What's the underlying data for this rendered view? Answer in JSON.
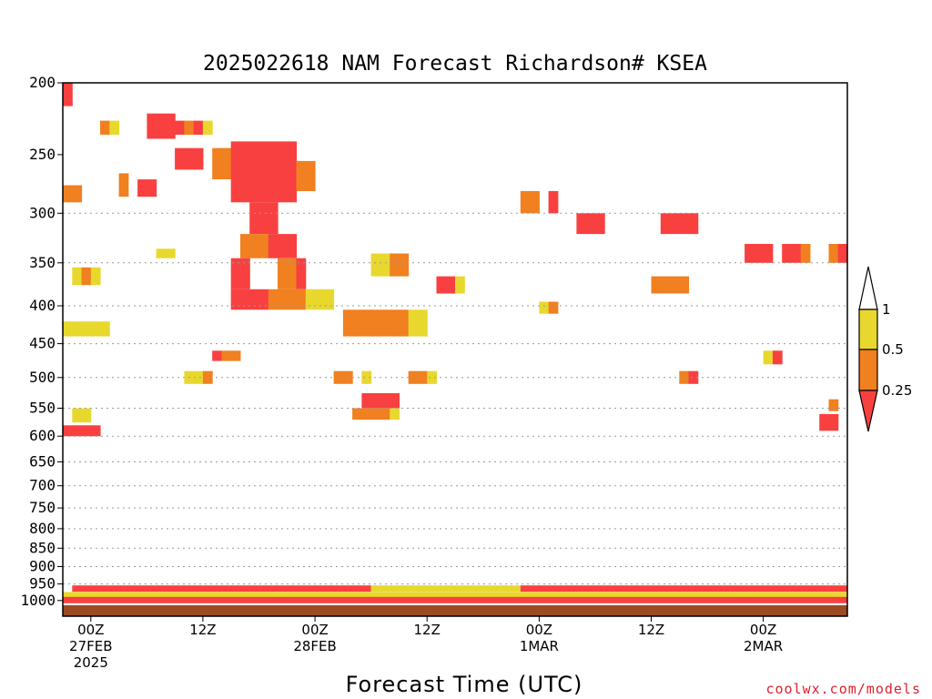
{
  "chart_data": {
    "type": "heatmap",
    "title": "2025022618 NAM Forecast Richardson# KSEA",
    "xlabel": "Forecast Time (UTC)",
    "ylabel": "",
    "y_axis": {
      "scale": "log",
      "reversed": true,
      "range": [
        200,
        1050
      ],
      "ticks": [
        "200",
        "250",
        "300",
        "350",
        "400",
        "450",
        "500",
        "550",
        "600",
        "650",
        "700",
        "750",
        "800",
        "850",
        "900",
        "950",
        "1000"
      ]
    },
    "x_axis": {
      "range_hours": [
        -3,
        81
      ],
      "ticks": [
        {
          "hour": 0,
          "lines": [
            "00Z",
            "27FEB",
            "2025"
          ]
        },
        {
          "hour": 12,
          "lines": [
            "12Z"
          ]
        },
        {
          "hour": 24,
          "lines": [
            "00Z",
            "28FEB"
          ]
        },
        {
          "hour": 36,
          "lines": [
            "12Z"
          ]
        },
        {
          "hour": 48,
          "lines": [
            "00Z",
            "1MAR"
          ]
        },
        {
          "hour": 60,
          "lines": [
            "12Z"
          ]
        },
        {
          "hour": 72,
          "lines": [
            "00Z",
            "2MAR"
          ]
        }
      ]
    },
    "grid": {
      "horizontal_dotted": [
        "300",
        "350",
        "400",
        "450",
        "500",
        "550",
        "600",
        "650",
        "700",
        "750",
        "800",
        "850",
        "900",
        "950"
      ]
    },
    "legend": {
      "placement": "right",
      "entries": [
        {
          "label": "1",
          "color": "#e8d82e",
          "range": "0.5 – 1"
        },
        {
          "label": "0.5",
          "color": "#f08020",
          "range": "0.25 – 0.5"
        },
        {
          "label": "0.25",
          "color": "#f84040",
          "range": "< 0.25"
        }
      ]
    },
    "colors": {
      "ri_lt_025": "#f84040",
      "ri_025_05": "#f08020",
      "ri_05_1": "#e8d82e",
      "ground": "#9c4a22"
    },
    "cells": [
      {
        "h": -3,
        "p": [
          200,
          215
        ],
        "c": 0
      },
      {
        "h": 1,
        "p": [
          225,
          235
        ],
        "c": 1
      },
      {
        "h": 2,
        "p": [
          225,
          235
        ],
        "c": 2
      },
      {
        "h": 6,
        "p": [
          220,
          238
        ],
        "c": 0
      },
      {
        "h": 7,
        "p": [
          220,
          238
        ],
        "c": 0
      },
      {
        "h": 8,
        "p": [
          220,
          238
        ],
        "c": 0
      },
      {
        "h": 9,
        "p": [
          225,
          235
        ],
        "c": 0
      },
      {
        "h": 10,
        "p": [
          225,
          235
        ],
        "c": 1
      },
      {
        "h": 11,
        "p": [
          225,
          235
        ],
        "c": 0
      },
      {
        "h": 12,
        "p": [
          225,
          235
        ],
        "c": 2
      },
      {
        "h": 9,
        "p": [
          245,
          262
        ],
        "c": 0
      },
      {
        "h": 10,
        "p": [
          245,
          262
        ],
        "c": 0
      },
      {
        "h": 11,
        "p": [
          245,
          262
        ],
        "c": 0
      },
      {
        "h": 13,
        "p": [
          245,
          270
        ],
        "c": 1
      },
      {
        "h": 14,
        "p": [
          245,
          270
        ],
        "c": 1
      },
      {
        "h": 15,
        "p": [
          240,
          290
        ],
        "c": 0
      },
      {
        "h": 16,
        "p": [
          240,
          290
        ],
        "c": 0
      },
      {
        "h": 17,
        "p": [
          240,
          290
        ],
        "c": 0
      },
      {
        "h": 18,
        "p": [
          240,
          290
        ],
        "c": 0
      },
      {
        "h": 19,
        "p": [
          240,
          290
        ],
        "c": 0
      },
      {
        "h": 20,
        "p": [
          240,
          290
        ],
        "c": 0
      },
      {
        "h": 21,
        "p": [
          240,
          290
        ],
        "c": 0
      },
      {
        "h": 17,
        "p": [
          290,
          320
        ],
        "c": 0
      },
      {
        "h": 18,
        "p": [
          290,
          320
        ],
        "c": 0
      },
      {
        "h": 19,
        "p": [
          290,
          320
        ],
        "c": 0
      },
      {
        "h": 22,
        "p": [
          255,
          280
        ],
        "c": 1
      },
      {
        "h": 23,
        "p": [
          255,
          280
        ],
        "c": 1
      },
      {
        "h": 3,
        "p": [
          265,
          285
        ],
        "c": 1
      },
      {
        "h": 5,
        "p": [
          270,
          285
        ],
        "c": 0
      },
      {
        "h": 6,
        "p": [
          270,
          285
        ],
        "c": 0
      },
      {
        "h": -2,
        "p": [
          275,
          290
        ],
        "c": 1
      },
      {
        "h": -3,
        "p": [
          275,
          290
        ],
        "c": 1
      },
      {
        "h": 16,
        "p": [
          320,
          345
        ],
        "c": 1
      },
      {
        "h": 17,
        "p": [
          320,
          345
        ],
        "c": 1
      },
      {
        "h": 18,
        "p": [
          320,
          345
        ],
        "c": 1
      },
      {
        "h": 19,
        "p": [
          320,
          345
        ],
        "c": 0
      },
      {
        "h": 20,
        "p": [
          320,
          345
        ],
        "c": 0
      },
      {
        "h": 21,
        "p": [
          320,
          345
        ],
        "c": 0
      },
      {
        "h": 15,
        "p": [
          345,
          380
        ],
        "c": 0
      },
      {
        "h": 16,
        "p": [
          345,
          380
        ],
        "c": 0
      },
      {
        "h": 20,
        "p": [
          345,
          380
        ],
        "c": 1
      },
      {
        "h": 21,
        "p": [
          345,
          380
        ],
        "c": 1
      },
      {
        "h": 22,
        "p": [
          345,
          380
        ],
        "c": 0
      },
      {
        "h": 15,
        "p": [
          380,
          405
        ],
        "c": 0
      },
      {
        "h": 16,
        "p": [
          380,
          405
        ],
        "c": 0
      },
      {
        "h": 17,
        "p": [
          380,
          405
        ],
        "c": 0
      },
      {
        "h": 18,
        "p": [
          380,
          405
        ],
        "c": 0
      },
      {
        "h": 19,
        "p": [
          380,
          405
        ],
        "c": 1
      },
      {
        "h": 20,
        "p": [
          380,
          405
        ],
        "c": 1
      },
      {
        "h": 21,
        "p": [
          380,
          405
        ],
        "c": 1
      },
      {
        "h": 22,
        "p": [
          380,
          405
        ],
        "c": 1
      },
      {
        "h": 23,
        "p": [
          380,
          405
        ],
        "c": 2
      },
      {
        "h": 24,
        "p": [
          380,
          405
        ],
        "c": 2
      },
      {
        "h": 25,
        "p": [
          380,
          405
        ],
        "c": 2
      },
      {
        "h": 27,
        "p": [
          405,
          440
        ],
        "c": 1
      },
      {
        "h": 28,
        "p": [
          405,
          440
        ],
        "c": 1
      },
      {
        "h": 29,
        "p": [
          405,
          440
        ],
        "c": 1
      },
      {
        "h": 30,
        "p": [
          405,
          440
        ],
        "c": 1
      },
      {
        "h": 31,
        "p": [
          405,
          440
        ],
        "c": 1
      },
      {
        "h": 32,
        "p": [
          405,
          440
        ],
        "c": 1
      },
      {
        "h": 33,
        "p": [
          405,
          440
        ],
        "c": 1
      },
      {
        "h": 34,
        "p": [
          405,
          440
        ],
        "c": 2
      },
      {
        "h": 35,
        "p": [
          405,
          440
        ],
        "c": 2
      },
      {
        "h": 30,
        "p": [
          340,
          365
        ],
        "c": 2
      },
      {
        "h": 31,
        "p": [
          340,
          365
        ],
        "c": 2
      },
      {
        "h": 32,
        "p": [
          340,
          365
        ],
        "c": 1
      },
      {
        "h": 33,
        "p": [
          340,
          365
        ],
        "c": 1
      },
      {
        "h": 37,
        "p": [
          365,
          385
        ],
        "c": 0
      },
      {
        "h": 38,
        "p": [
          365,
          385
        ],
        "c": 0
      },
      {
        "h": 39,
        "p": [
          365,
          385
        ],
        "c": 2
      },
      {
        "h": 48,
        "p": [
          395,
          410
        ],
        "c": 2
      },
      {
        "h": 49,
        "p": [
          395,
          410
        ],
        "c": 1
      },
      {
        "h": 26,
        "p": [
          490,
          510
        ],
        "c": 1
      },
      {
        "h": 27,
        "p": [
          490,
          510
        ],
        "c": 1
      },
      {
        "h": 29,
        "p": [
          490,
          510
        ],
        "c": 2
      },
      {
        "h": 34,
        "p": [
          490,
          510
        ],
        "c": 1
      },
      {
        "h": 35,
        "p": [
          490,
          510
        ],
        "c": 1
      },
      {
        "h": 36,
        "p": [
          490,
          510
        ],
        "c": 2
      },
      {
        "h": 29,
        "p": [
          525,
          550
        ],
        "c": 0
      },
      {
        "h": 30,
        "p": [
          525,
          550
        ],
        "c": 0
      },
      {
        "h": 31,
        "p": [
          525,
          550
        ],
        "c": 0
      },
      {
        "h": 32,
        "p": [
          525,
          550
        ],
        "c": 0
      },
      {
        "h": 28,
        "p": [
          550,
          570
        ],
        "c": 1
      },
      {
        "h": 29,
        "p": [
          550,
          570
        ],
        "c": 1
      },
      {
        "h": 30,
        "p": [
          550,
          570
        ],
        "c": 1
      },
      {
        "h": 31,
        "p": [
          550,
          570
        ],
        "c": 1
      },
      {
        "h": 32,
        "p": [
          550,
          570
        ],
        "c": 2
      },
      {
        "h": -3,
        "p": [
          580,
          600
        ],
        "c": 0
      },
      {
        "h": -2,
        "p": [
          580,
          600
        ],
        "c": 0
      },
      {
        "h": -1,
        "p": [
          580,
          600
        ],
        "c": 0
      },
      {
        "h": 0,
        "p": [
          580,
          600
        ],
        "c": 0
      },
      {
        "h": -2,
        "p": [
          550,
          575
        ],
        "c": 2
      },
      {
        "h": -1,
        "p": [
          550,
          575
        ],
        "c": 2
      },
      {
        "h": -3,
        "p": [
          420,
          440
        ],
        "c": 2
      },
      {
        "h": -2,
        "p": [
          420,
          440
        ],
        "c": 2
      },
      {
        "h": -1,
        "p": [
          420,
          440
        ],
        "c": 2
      },
      {
        "h": 0,
        "p": [
          420,
          440
        ],
        "c": 2
      },
      {
        "h": 1,
        "p": [
          420,
          440
        ],
        "c": 2
      },
      {
        "h": -2,
        "p": [
          355,
          375
        ],
        "c": 2
      },
      {
        "h": -1,
        "p": [
          355,
          375
        ],
        "c": 1
      },
      {
        "h": 0,
        "p": [
          355,
          375
        ],
        "c": 2
      },
      {
        "h": 7,
        "p": [
          335,
          345
        ],
        "c": 2
      },
      {
        "h": 8,
        "p": [
          335,
          345
        ],
        "c": 2
      },
      {
        "h": 13,
        "p": [
          460,
          475
        ],
        "c": 0
      },
      {
        "h": 14,
        "p": [
          460,
          475
        ],
        "c": 1
      },
      {
        "h": 15,
        "p": [
          460,
          475
        ],
        "c": 1
      },
      {
        "h": 10,
        "p": [
          490,
          510
        ],
        "c": 2
      },
      {
        "h": 11,
        "p": [
          490,
          510
        ],
        "c": 2
      },
      {
        "h": 12,
        "p": [
          490,
          510
        ],
        "c": 1
      },
      {
        "h": 46,
        "p": [
          280,
          300
        ],
        "c": 1
      },
      {
        "h": 47,
        "p": [
          280,
          300
        ],
        "c": 1
      },
      {
        "h": 49,
        "p": [
          280,
          300
        ],
        "c": 0
      },
      {
        "h": 52,
        "p": [
          300,
          320
        ],
        "c": 0
      },
      {
        "h": 53,
        "p": [
          300,
          320
        ],
        "c": 0
      },
      {
        "h": 54,
        "p": [
          300,
          320
        ],
        "c": 0
      },
      {
        "h": 61,
        "p": [
          300,
          320
        ],
        "c": 0
      },
      {
        "h": 62,
        "p": [
          300,
          320
        ],
        "c": 0
      },
      {
        "h": 63,
        "p": [
          300,
          320
        ],
        "c": 0
      },
      {
        "h": 64,
        "p": [
          300,
          320
        ],
        "c": 0
      },
      {
        "h": 60,
        "p": [
          365,
          385
        ],
        "c": 1
      },
      {
        "h": 61,
        "p": [
          365,
          385
        ],
        "c": 1
      },
      {
        "h": 62,
        "p": [
          365,
          385
        ],
        "c": 1
      },
      {
        "h": 63,
        "p": [
          365,
          385
        ],
        "c": 1
      },
      {
        "h": 70,
        "p": [
          330,
          350
        ],
        "c": 0
      },
      {
        "h": 71,
        "p": [
          330,
          350
        ],
        "c": 0
      },
      {
        "h": 72,
        "p": [
          330,
          350
        ],
        "c": 0
      },
      {
        "h": 74,
        "p": [
          330,
          350
        ],
        "c": 0
      },
      {
        "h": 75,
        "p": [
          330,
          350
        ],
        "c": 0
      },
      {
        "h": 76,
        "p": [
          330,
          350
        ],
        "c": 1
      },
      {
        "h": 79,
        "p": [
          330,
          350
        ],
        "c": 1
      },
      {
        "h": 80,
        "p": [
          330,
          350
        ],
        "c": 0
      },
      {
        "h": 72,
        "p": [
          460,
          480
        ],
        "c": 2
      },
      {
        "h": 73,
        "p": [
          460,
          480
        ],
        "c": 0
      },
      {
        "h": 63,
        "p": [
          490,
          510
        ],
        "c": 1
      },
      {
        "h": 64,
        "p": [
          490,
          510
        ],
        "c": 0
      },
      {
        "h": 78,
        "p": [
          560,
          590
        ],
        "c": 0
      },
      {
        "h": 79,
        "p": [
          560,
          590
        ],
        "c": 0
      },
      {
        "h": 79,
        "p": [
          535,
          555
        ],
        "c": 1
      }
    ],
    "pbl_rows": [
      {
        "p": 965,
        "segs": [
          [
            -2,
            30,
            0
          ],
          [
            30,
            46,
            2
          ],
          [
            46,
            81,
            0
          ]
        ]
      },
      {
        "p": 985,
        "segs": [
          [
            -3,
            81,
            2
          ]
        ]
      },
      {
        "p": 1000,
        "segs": [
          [
            -3,
            81,
            0
          ]
        ]
      }
    ],
    "ground_from_p": 1015
  },
  "credit": "coolwx.com/models"
}
